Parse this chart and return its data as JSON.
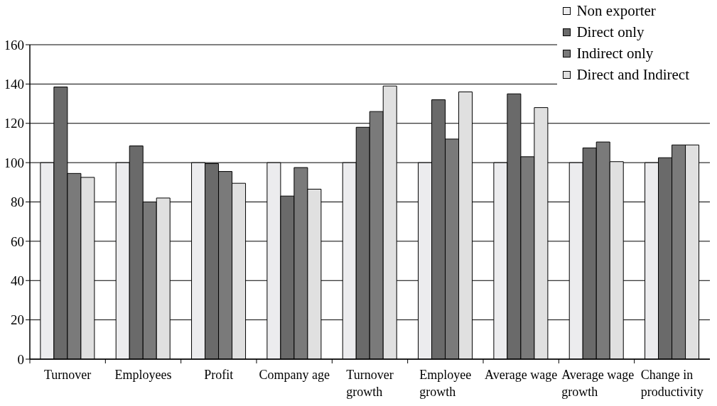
{
  "chart_data": {
    "type": "bar",
    "categories": [
      "Turnover",
      "Employees",
      "Profit",
      "Company age",
      "Turnover growth",
      "Employee growth",
      "Average wage",
      "Average wage growth",
      "Change in productivity"
    ],
    "series": [
      {
        "name": "Non exporter",
        "color": "#ececee",
        "values": [
          100,
          100,
          100,
          100,
          100,
          100,
          100,
          100,
          100
        ]
      },
      {
        "name": "Direct only",
        "color": "#6a6a6a",
        "values": [
          138.5,
          108.5,
          99.5,
          83,
          118,
          132,
          135,
          107.5,
          102.5
        ]
      },
      {
        "name": "Indirect only",
        "color": "#7a7a7a",
        "values": [
          94.5,
          80,
          95.5,
          97.5,
          126,
          112,
          103,
          110.5,
          109
        ]
      },
      {
        "name": "Direct and Indirect",
        "color": "#e0e0e0",
        "values": [
          92.5,
          82,
          89.5,
          86.5,
          139,
          136,
          128,
          100.5,
          109
        ]
      }
    ],
    "ylim": [
      0,
      160
    ],
    "yticks": [
      0,
      20,
      40,
      60,
      80,
      100,
      120,
      140,
      160
    ],
    "grid": "y",
    "legend": "top right"
  }
}
